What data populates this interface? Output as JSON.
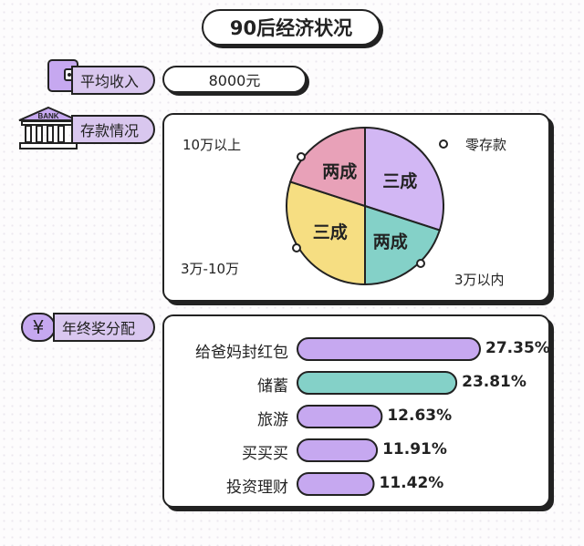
{
  "title": "90后经济状况",
  "income": {
    "label": "平均收入",
    "value": "8000元"
  },
  "savings": {
    "label": "存款情况",
    "bank_text": "BANK"
  },
  "bonus": {
    "label": "年终奖分配",
    "icon_symbol": "¥"
  },
  "colors": {
    "purple": "#d9c7ef",
    "violet": "#c6a8f0",
    "pink": "#e8a1b8",
    "yellow": "#f6de82",
    "teal": "#84d1c8",
    "outline": "#222222"
  },
  "chart_data": [
    {
      "type": "pie",
      "slices": [
        {
          "label": "零存款",
          "inner_label": "三成",
          "value": 30,
          "color": "#d2b7f4"
        },
        {
          "label": "3万以内",
          "inner_label": "两成",
          "value": 20,
          "color": "#84d1c8"
        },
        {
          "label": "3万-10万",
          "inner_label": "三成",
          "value": 30,
          "color": "#f6de82"
        },
        {
          "label": "10万以上",
          "inner_label": "两成",
          "value": 20,
          "color": "#e8a1b8"
        }
      ]
    },
    {
      "type": "bar",
      "orientation": "horizontal",
      "categories": [
        "给爸妈封红包",
        "储蓄",
        "旅游",
        "买买买",
        "投资理财"
      ],
      "values": [
        27.35,
        23.81,
        12.63,
        11.91,
        11.42
      ],
      "value_labels": [
        "27.35%",
        "23.81%",
        "12.63%",
        "11.91%",
        "11.42%"
      ],
      "colors": [
        "#c6a8f0",
        "#84d1c8",
        "#c6a8f0",
        "#c6a8f0",
        "#c6a8f0"
      ],
      "xlim": [
        0,
        27.35
      ]
    }
  ]
}
